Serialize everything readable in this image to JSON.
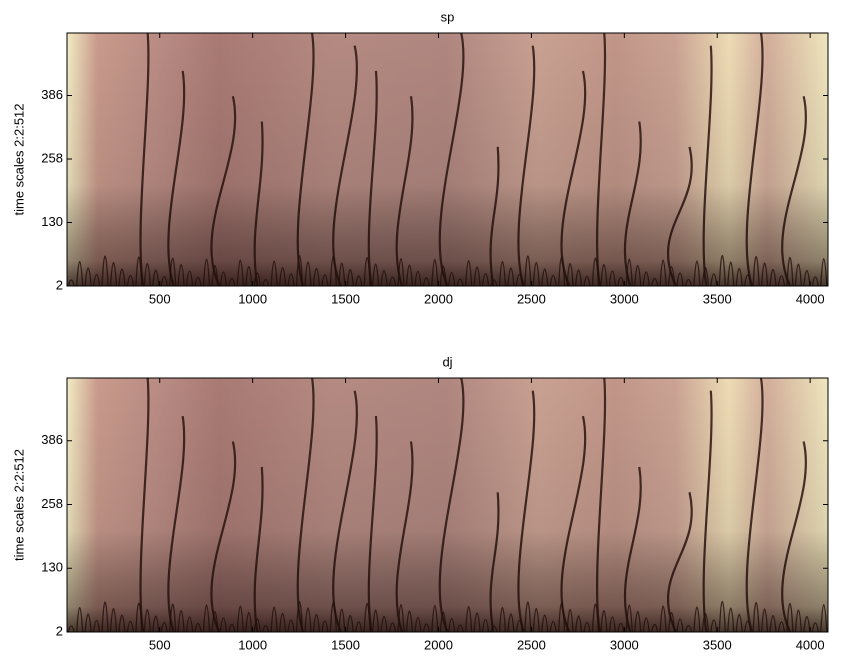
{
  "chart_data": [
    {
      "type": "heatmap",
      "title": "sp",
      "ylabel": "time scales 2:2:512",
      "xlim": [
        1,
        4096
      ],
      "ylim": [
        2,
        512
      ],
      "xticks": [
        500,
        1000,
        1500,
        2000,
        2500,
        3000,
        3500,
        4000
      ],
      "yticks": [
        2,
        130,
        258,
        386
      ]
    },
    {
      "type": "heatmap",
      "title": "dj",
      "ylabel": "time scales 2:2:512",
      "xlim": [
        1,
        4096
      ],
      "ylim": [
        2,
        512
      ],
      "xticks": [
        500,
        1000,
        1500,
        2000,
        2500,
        3000,
        3500,
        4000
      ],
      "yticks": [
        2,
        130,
        258,
        386
      ]
    }
  ]
}
